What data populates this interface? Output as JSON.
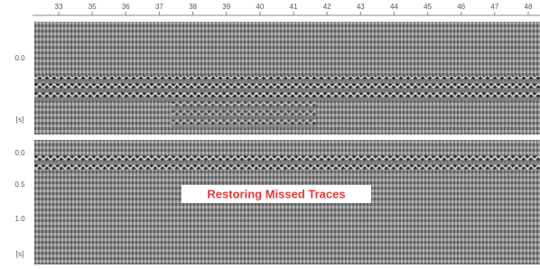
{
  "top_axis": {
    "labels": [
      "33",
      "35",
      "36",
      "37",
      "38",
      "39",
      "40",
      "41",
      "42",
      "43",
      "44",
      "45",
      "46",
      "47",
      "48"
    ]
  },
  "panels": [
    {
      "axis_labels": [
        "0.0",
        "[s]"
      ]
    },
    {
      "axis_labels": [
        "0.0",
        "0.5",
        "1.0",
        "[s]"
      ]
    }
  ],
  "caption": "Restoring Missed Traces"
}
